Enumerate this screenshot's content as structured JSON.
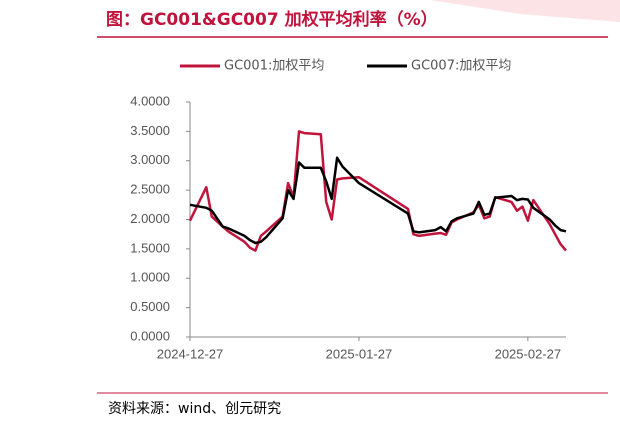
{
  "chart_data": {
    "type": "line",
    "title": "图：GC001&GC007 加权平均利率（%）",
    "source": "资料来源：wind、创元研究",
    "x": [
      "2024-12-27",
      "2024-12-30",
      "2024-12-31",
      "2025-01-02",
      "2025-01-03",
      "2025-01-06",
      "2025-01-07",
      "2025-01-08",
      "2025-01-09",
      "2025-01-10",
      "2025-01-13",
      "2025-01-14",
      "2025-01-15",
      "2025-01-16",
      "2025-01-17",
      "2025-01-20",
      "2025-01-21",
      "2025-01-22",
      "2025-01-23",
      "2025-01-24",
      "2025-01-27",
      "2025-02-05",
      "2025-02-06",
      "2025-02-07",
      "2025-02-10",
      "2025-02-11",
      "2025-02-12",
      "2025-02-13",
      "2025-02-14",
      "2025-02-17",
      "2025-02-18",
      "2025-02-19",
      "2025-02-20",
      "2025-02-21",
      "2025-02-24",
      "2025-02-25",
      "2025-02-26",
      "2025-02-27",
      "2025-02-28",
      "2025-03-03",
      "2025-03-04",
      "2025-03-05",
      "2025-03-06"
    ],
    "series": [
      {
        "name": "GC001:加权平均",
        "color": "#c0143c",
        "values": [
          1.98,
          2.55,
          2.05,
          1.88,
          1.8,
          1.62,
          1.52,
          1.47,
          1.72,
          1.8,
          2.05,
          2.62,
          2.38,
          3.5,
          3.47,
          3.45,
          2.3,
          2.0,
          2.68,
          2.7,
          2.72,
          2.18,
          1.75,
          1.72,
          1.76,
          1.77,
          1.74,
          1.95,
          2.0,
          2.12,
          2.25,
          2.02,
          2.05,
          2.38,
          2.3,
          2.15,
          2.22,
          1.98,
          2.33,
          1.92,
          1.75,
          1.58,
          1.47
        ]
      },
      {
        "name": "GC007:加权平均",
        "color": "#000000",
        "values": [
          2.25,
          2.2,
          2.15,
          1.88,
          1.85,
          1.72,
          1.65,
          1.6,
          1.62,
          1.7,
          2.02,
          2.5,
          2.35,
          2.97,
          2.88,
          2.88,
          2.65,
          2.35,
          3.05,
          2.9,
          2.62,
          2.1,
          1.8,
          1.78,
          1.82,
          1.87,
          1.8,
          1.97,
          2.02,
          2.1,
          2.3,
          2.08,
          2.1,
          2.37,
          2.4,
          2.33,
          2.35,
          2.34,
          2.2,
          2.0,
          1.9,
          1.82,
          1.8
        ]
      }
    ],
    "xlim": [
      "2024-12-27",
      "2025-03-06"
    ],
    "xticks": [
      "2024-12-27",
      "2025-01-27",
      "2025-02-27"
    ],
    "ylim": [
      0,
      4
    ],
    "yticks": [
      {
        "value": 0,
        "label": "0.0000"
      },
      {
        "value": 0.5,
        "label": "0.5000"
      },
      {
        "value": 1,
        "label": "1.0000"
      },
      {
        "value": 1.5,
        "label": "1.5000"
      },
      {
        "value": 2,
        "label": "2.0000"
      },
      {
        "value": 2.5,
        "label": "2.5000"
      },
      {
        "value": 3,
        "label": "3.0000"
      },
      {
        "value": 3.5,
        "label": "3.5000"
      },
      {
        "value": 4,
        "label": "4.0000"
      }
    ],
    "grid": false,
    "legend": "top"
  }
}
